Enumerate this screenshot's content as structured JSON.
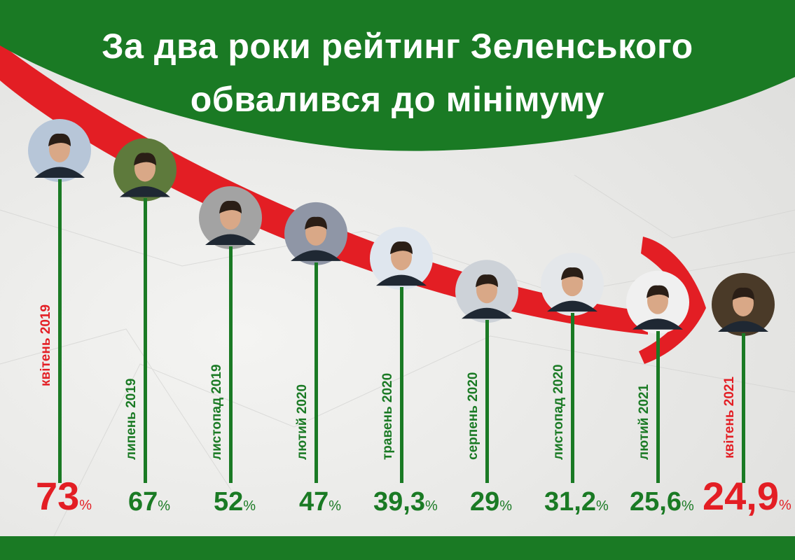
{
  "header": {
    "title_line1": "За два роки рейтинг Зеленського",
    "title_line2": "обвалився до мінімуму"
  },
  "colors": {
    "green": "#1a7a24",
    "red": "#e31e24",
    "background": "#ececea"
  },
  "chart_data": {
    "type": "line",
    "title": "За два роки рейтинг Зеленського обвалився до мінімуму",
    "unit": "%",
    "categories": [
      "квітень 2019",
      "липень 2019",
      "листопад 2019",
      "лютий 2020",
      "травень 2020",
      "серпень 2020",
      "листопад 2020",
      "лютий 2021",
      "квітень 2021"
    ],
    "values": [
      73,
      67,
      52,
      47,
      39.3,
      29,
      31.2,
      25.6,
      24.9
    ],
    "value_labels": [
      "73",
      "67",
      "52",
      "47",
      "39,3",
      "29",
      "31,2",
      "25,6",
      "24,9"
    ],
    "highlighted": [
      true,
      false,
      false,
      false,
      false,
      false,
      false,
      false,
      true
    ],
    "markers": "circular portrait photos",
    "trend_arrow": "red, downward"
  }
}
